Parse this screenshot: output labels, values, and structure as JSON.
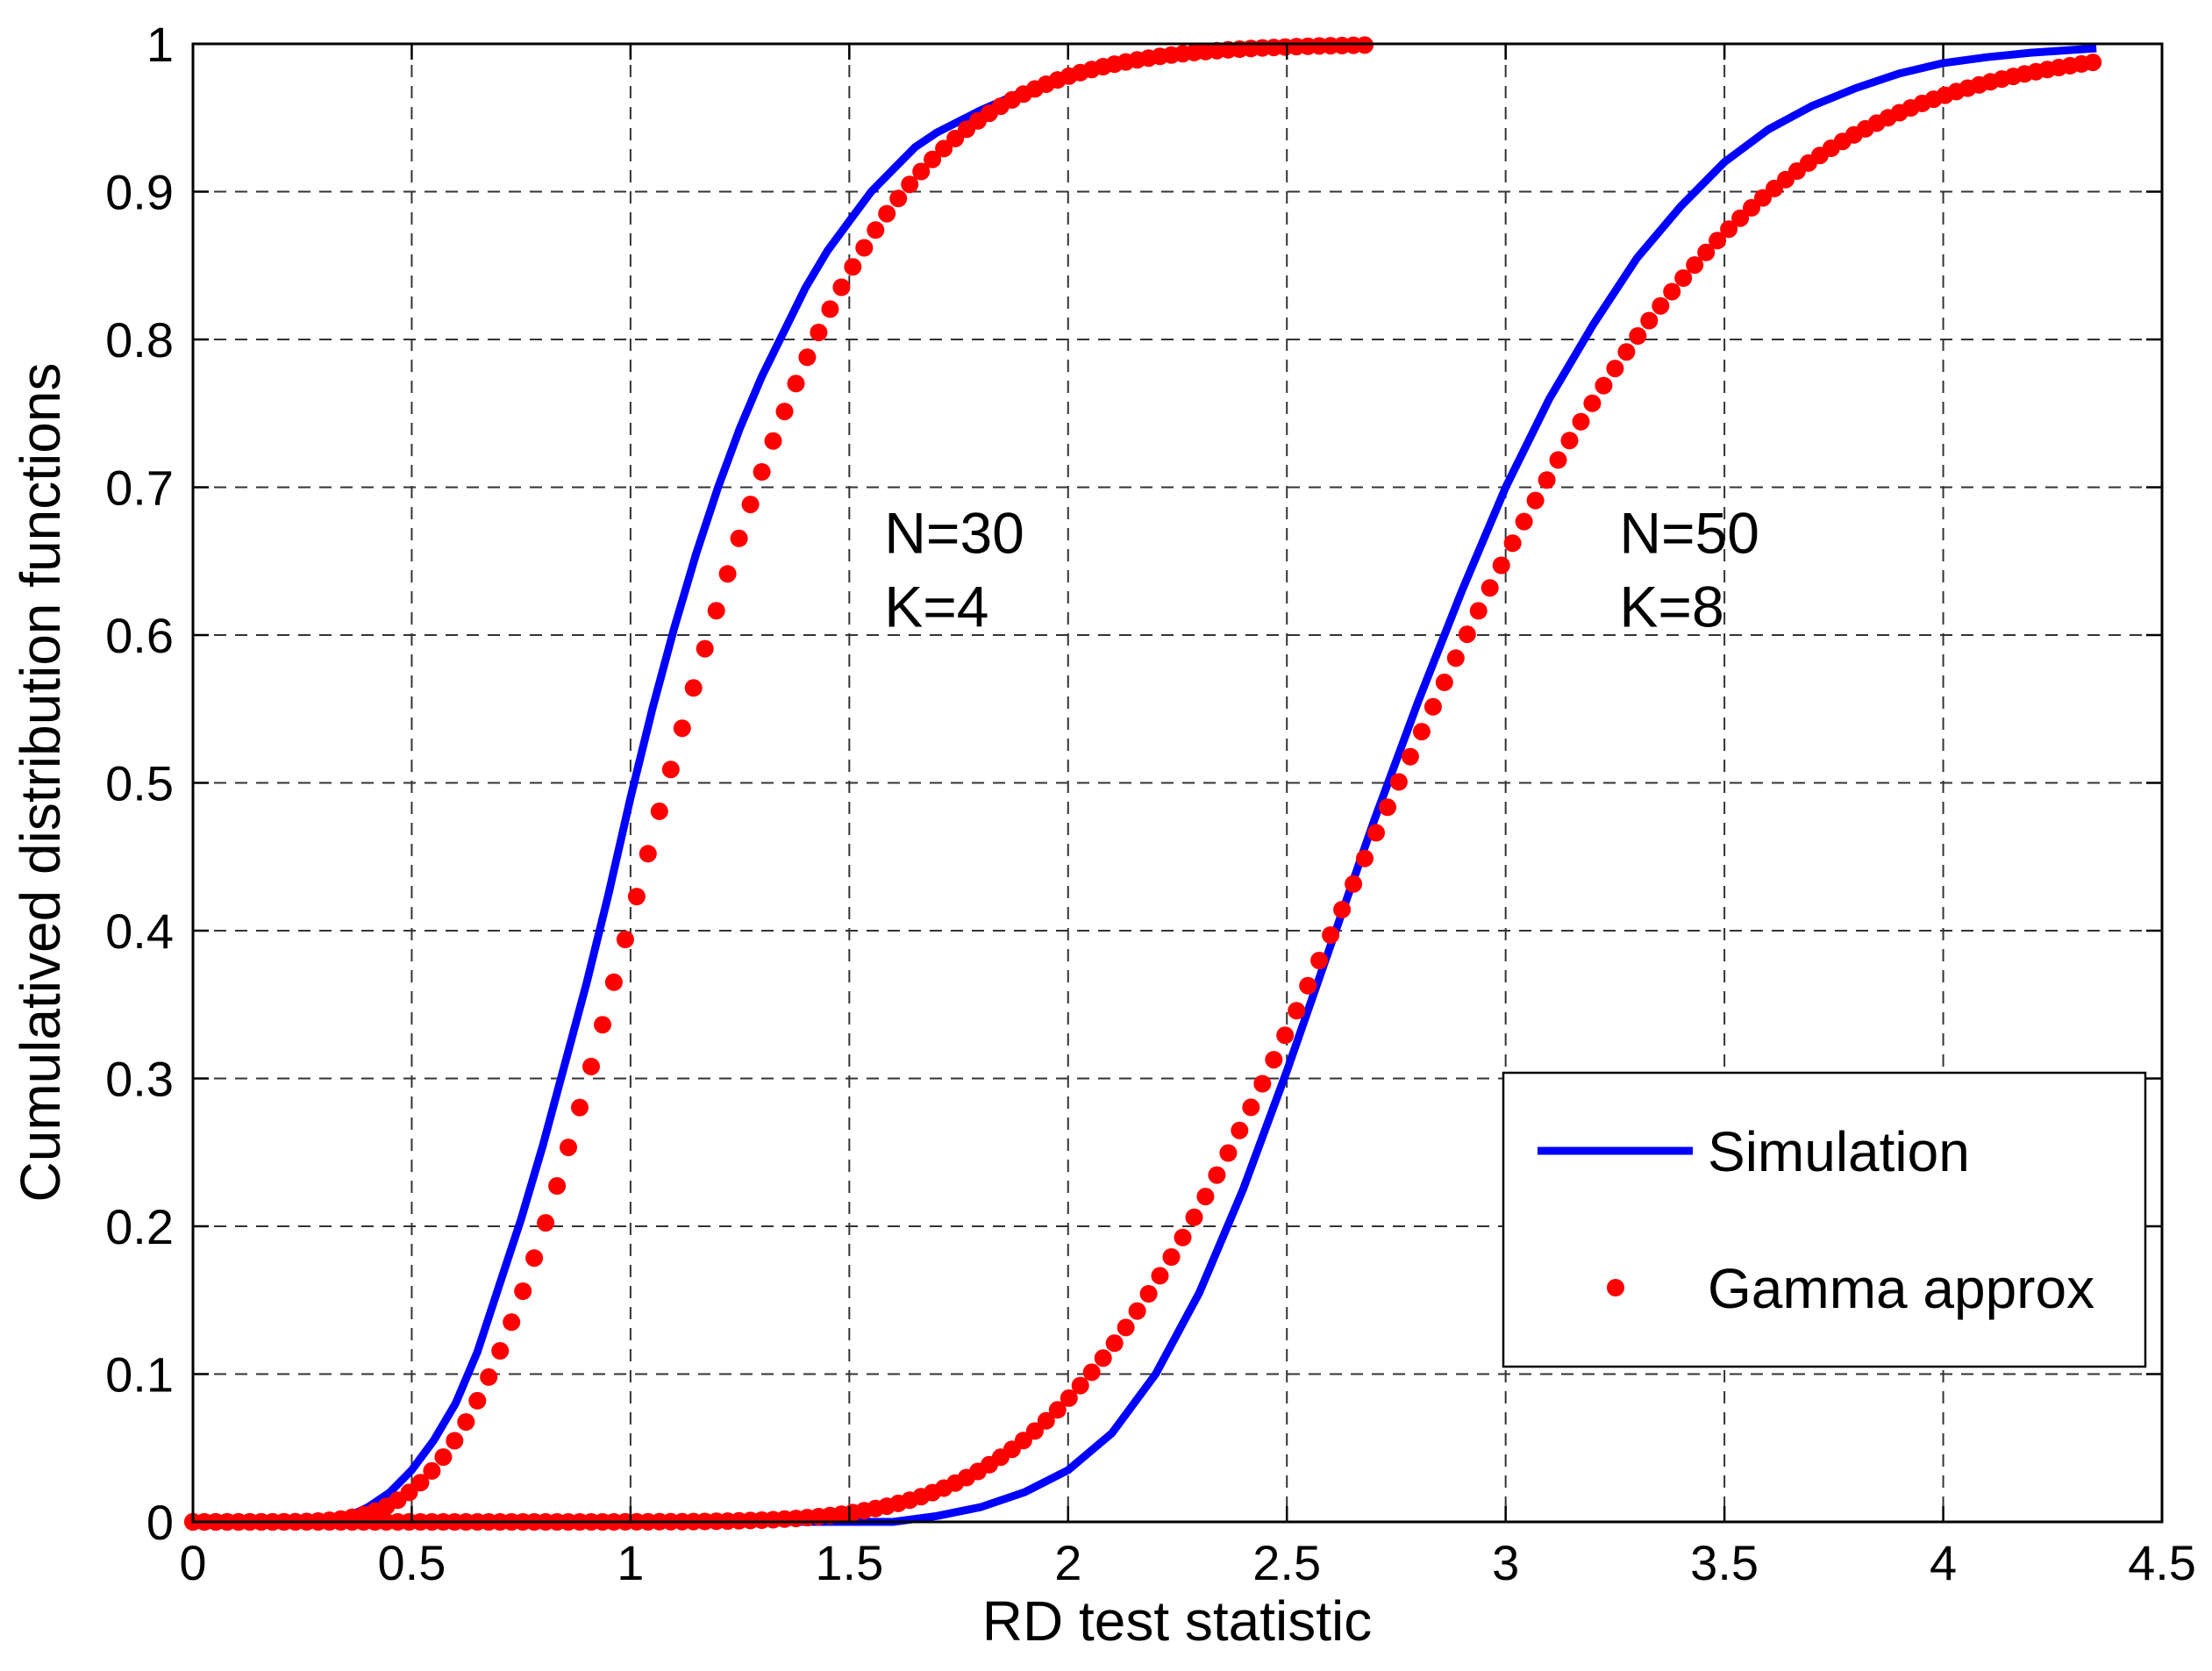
{
  "chart_data": {
    "type": "line",
    "title": "",
    "xlabel": "RD test statistic",
    "ylabel": "Cumulatived  distribution  functions",
    "xlim": [
      0,
      4.5
    ],
    "ylim": [
      0,
      1
    ],
    "xticks": [
      0,
      0.5,
      1,
      1.5,
      2,
      2.5,
      3,
      3.5,
      4,
      4.5
    ],
    "xtick_labels": [
      "0",
      "0.5",
      "1",
      "1.5",
      "2",
      "2.5",
      "3",
      "3.5",
      "4",
      "4.5"
    ],
    "yticks": [
      0,
      0.1,
      0.2,
      0.3,
      0.4,
      0.5,
      0.6,
      0.7,
      0.8,
      0.9,
      1
    ],
    "ytick_labels": [
      "0",
      "0.1",
      "0.2",
      "0.3",
      "0.4",
      "0.5",
      "0.6",
      "0.7",
      "0.8",
      "0.9",
      "1"
    ],
    "grid": true,
    "legend_position": "bottom-right",
    "legend": {
      "simulation_label": "Simulation",
      "gamma_label": "Gamma approx"
    },
    "colors": {
      "simulation": "#0000ff",
      "gamma": "#ff0000",
      "grid": "#333333",
      "axes": "#000000"
    },
    "annotations": [
      {
        "lines": [
          "N=30",
          "K=4"
        ],
        "x": 1.58,
        "y_top": 0.69
      },
      {
        "lines": [
          "N=50",
          "K=8"
        ],
        "x": 3.26,
        "y_top": 0.69
      }
    ],
    "series": [
      {
        "name": "Simulation",
        "group": "N=30, K=4",
        "style": "line",
        "x": [
          0,
          0.3,
          0.35,
          0.4,
          0.45,
          0.5,
          0.55,
          0.6,
          0.65,
          0.7,
          0.75,
          0.8,
          0.85,
          0.9,
          0.95,
          1.0,
          1.05,
          1.1,
          1.15,
          1.2,
          1.25,
          1.3,
          1.35,
          1.4,
          1.45,
          1.5,
          1.55,
          1.6,
          1.65,
          1.7,
          1.8,
          1.9,
          2.0,
          2.1,
          2.2,
          2.3,
          2.4,
          2.5,
          2.6,
          2.68
        ],
        "y": [
          0,
          0,
          0.003,
          0.01,
          0.02,
          0.035,
          0.055,
          0.08,
          0.115,
          0.16,
          0.205,
          0.255,
          0.31,
          0.365,
          0.425,
          0.49,
          0.55,
          0.605,
          0.655,
          0.7,
          0.74,
          0.775,
          0.805,
          0.835,
          0.86,
          0.88,
          0.9,
          0.915,
          0.93,
          0.94,
          0.955,
          0.968,
          0.978,
          0.985,
          0.99,
          0.993,
          0.995,
          0.997,
          0.998,
          0.998
        ]
      },
      {
        "name": "Gamma approx",
        "group": "N=30, K=4",
        "style": "dots",
        "x_start": 0.0,
        "x_end": 2.68,
        "x_step": 0.026,
        "cdf": "gamma",
        "shape": 9,
        "scale": 0.125
      },
      {
        "name": "Simulation",
        "group": "N=50, K=8",
        "style": "line",
        "x": [
          0,
          1.6,
          1.7,
          1.8,
          1.9,
          2.0,
          2.1,
          2.2,
          2.3,
          2.4,
          2.5,
          2.6,
          2.7,
          2.8,
          2.9,
          3.0,
          3.1,
          3.2,
          3.3,
          3.4,
          3.5,
          3.6,
          3.7,
          3.8,
          3.9,
          4.0,
          4.1,
          4.2,
          4.3,
          4.35
        ],
        "y": [
          0,
          0,
          0.004,
          0.01,
          0.02,
          0.035,
          0.06,
          0.1,
          0.155,
          0.225,
          0.305,
          0.39,
          0.475,
          0.555,
          0.63,
          0.7,
          0.76,
          0.81,
          0.855,
          0.89,
          0.92,
          0.942,
          0.958,
          0.97,
          0.98,
          0.987,
          0.991,
          0.994,
          0.996,
          0.997
        ]
      },
      {
        "name": "Gamma approx",
        "group": "N=50, K=8",
        "style": "dots",
        "x_start": 0.0,
        "x_end": 4.35,
        "x_step": 0.026,
        "cdf": "gamma",
        "shape": 21,
        "scale": 0.1333
      }
    ]
  }
}
